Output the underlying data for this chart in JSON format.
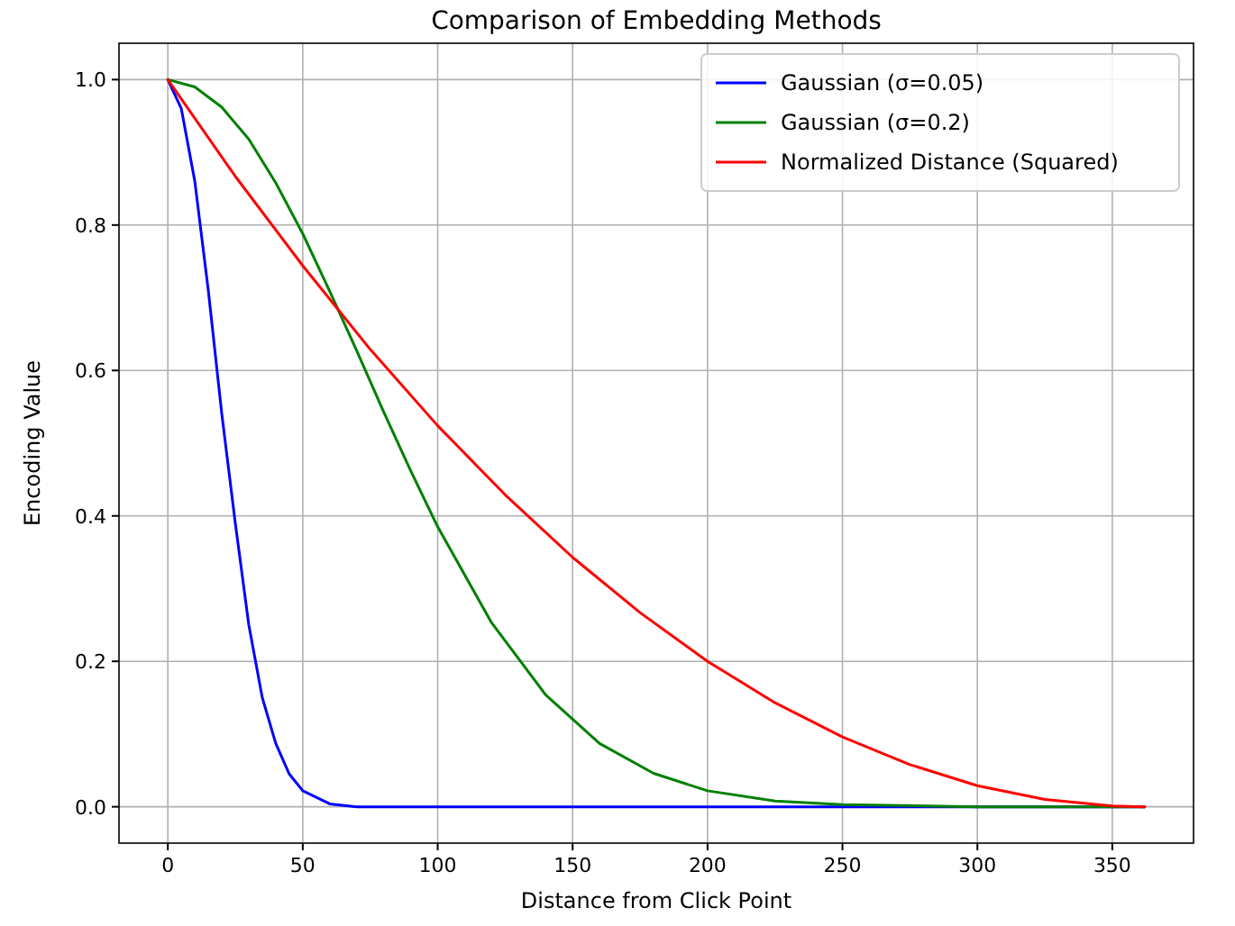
{
  "chart_data": {
    "type": "line",
    "title": "Comparison of Embedding Methods",
    "xlabel": "Distance from Click Point",
    "ylabel": "Encoding Value",
    "xlim": [
      -18.1,
      380.1
    ],
    "xticks": [
      0,
      50,
      100,
      150,
      200,
      250,
      300,
      350
    ],
    "ylim": [
      -0.05,
      1.05
    ],
    "yticks": [
      {
        "value": 0,
        "label": "0.0"
      },
      {
        "value": 0.2,
        "label": "0.2"
      },
      {
        "value": 0.4,
        "label": "0.4"
      },
      {
        "value": 0.6,
        "label": "0.6"
      },
      {
        "value": 0.8,
        "label": "0.8"
      },
      {
        "value": 1,
        "label": "1.0"
      }
    ],
    "grid": true,
    "legend": "top right",
    "marker": "none",
    "line_style": "solid",
    "series": [
      {
        "name": "Gaussian (σ=0.05)",
        "color": "#0000ff",
        "x": [
          0,
          5,
          10,
          15,
          20,
          25,
          30,
          35,
          40,
          45,
          50,
          60,
          70,
          100,
          200,
          300,
          362
        ],
        "values": [
          1,
          0.96,
          0.86,
          0.71,
          0.54,
          0.39,
          0.25,
          0.15,
          0.087,
          0.045,
          0.022,
          0.004,
          0,
          0,
          0,
          0,
          0
        ]
      },
      {
        "name": "Gaussian (σ=0.2)",
        "color": "#008000",
        "x": [
          0,
          10,
          20,
          30,
          40,
          50,
          60,
          70,
          80,
          90,
          100,
          120,
          140,
          160,
          180,
          200,
          225,
          250,
          300,
          362
        ],
        "values": [
          1,
          0.99,
          0.962,
          0.918,
          0.858,
          0.788,
          0.709,
          0.627,
          0.543,
          0.462,
          0.385,
          0.253,
          0.154,
          0.087,
          0.046,
          0.022,
          0.008,
          0.003,
          0,
          0
        ]
      },
      {
        "name": "Normalized Distance (Squared)",
        "color": "#ff0000",
        "x": [
          0,
          25,
          50,
          75,
          100,
          125,
          150,
          175,
          200,
          225,
          250,
          275,
          300,
          325,
          350,
          362
        ],
        "values": [
          1,
          0.867,
          0.744,
          0.629,
          0.524,
          0.429,
          0.343,
          0.267,
          0.2,
          0.143,
          0.096,
          0.058,
          0.029,
          0.01,
          0.001,
          0
        ]
      }
    ]
  }
}
